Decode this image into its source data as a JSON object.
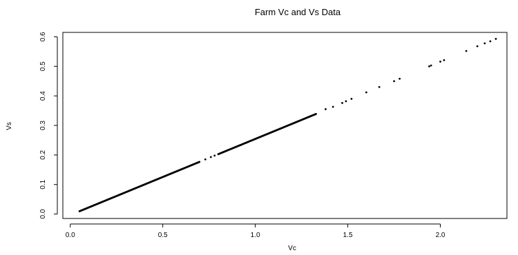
{
  "chart_data": {
    "type": "scatter",
    "title": "Farm Vc and Vs Data",
    "xlabel": "Vc",
    "ylabel": "Vs",
    "xlim": [
      -0.04,
      2.36
    ],
    "ylim": [
      -0.015,
      0.615
    ],
    "x_ticks": [
      0.0,
      0.5,
      1.0,
      1.5,
      2.0
    ],
    "x_tick_labels": [
      "0.0",
      "0.5",
      "1.0",
      "1.5",
      "2.0"
    ],
    "y_ticks": [
      0.0,
      0.1,
      0.2,
      0.3,
      0.4,
      0.5,
      0.6
    ],
    "y_tick_labels": [
      "0.0",
      "0.1",
      "0.2",
      "0.3",
      "0.4",
      "0.5",
      "0.6"
    ],
    "grid": false,
    "legend": false,
    "point_color": "#000000",
    "dense_segments": [
      {
        "x_start": 0.05,
        "x_end": 0.7,
        "step": 0.003
      },
      {
        "x_start": 0.8,
        "x_end": 1.33,
        "step": 0.003
      }
    ],
    "relation_slope": 0.2577,
    "relation_intercept": -0.0034,
    "x": [
      0.73,
      0.76,
      0.78,
      1.38,
      1.42,
      1.47,
      1.49,
      1.52,
      1.6,
      1.67,
      1.75,
      1.78,
      1.94,
      1.95,
      2.0,
      2.02,
      2.14,
      2.2,
      2.24,
      2.27,
      2.3
    ],
    "y": [
      0.185,
      0.193,
      0.198,
      0.355,
      0.363,
      0.376,
      0.382,
      0.39,
      0.412,
      0.43,
      0.45,
      0.458,
      0.5,
      0.503,
      0.516,
      0.521,
      0.552,
      0.568,
      0.578,
      0.585,
      0.593
    ]
  }
}
